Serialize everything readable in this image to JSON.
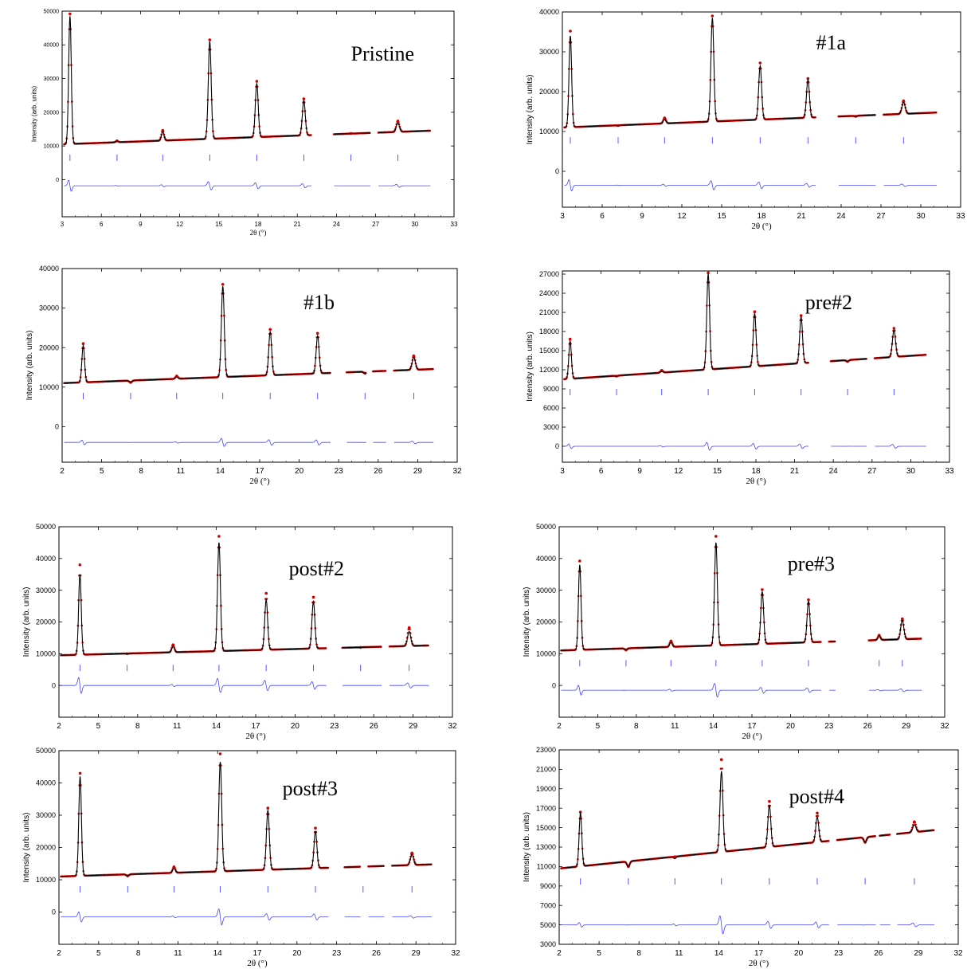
{
  "figure": {
    "layout": "4x2 grid of XRD Rietveld refinement plots"
  },
  "chart_data": [
    {
      "type": "line",
      "title": "Pristine",
      "xlabel": "2θ (°)",
      "ylabel": "Intensity (arb. units)",
      "xlim": [
        3,
        33
      ],
      "ylim": [
        -11000,
        50000
      ],
      "xticks": [
        3,
        6,
        9,
        12,
        15,
        18,
        21,
        24,
        27,
        30,
        33
      ],
      "yticks": [
        0,
        10000,
        20000,
        30000,
        40000,
        50000
      ],
      "baseline": {
        "start": 10500,
        "end": 14800
      },
      "diff_offset": -1800,
      "excluded_regions": [
        [
          22.1,
          23.8
        ],
        [
          26.6,
          27.2
        ]
      ],
      "peaks": [
        {
          "x": 3.6,
          "y": 48500,
          "obs": 49200,
          "w": 0.1
        },
        {
          "x": 7.2,
          "y": 11400,
          "obs": 11500,
          "w": 0.1
        },
        {
          "x": 10.7,
          "y": 14200,
          "obs": 14600,
          "w": 0.1
        },
        {
          "x": 14.3,
          "y": 41000,
          "obs": 41500,
          "w": 0.11
        },
        {
          "x": 17.9,
          "y": 28500,
          "obs": 29200,
          "w": 0.11
        },
        {
          "x": 21.5,
          "y": 23500,
          "obs": 24000,
          "w": 0.11
        },
        {
          "x": 25.1,
          "y": 13700,
          "obs": 13700,
          "w": 0.1
        },
        {
          "x": 28.7,
          "y": 16800,
          "obs": 17400,
          "w": 0.12
        }
      ]
    },
    {
      "type": "line",
      "title": "#1a",
      "xlabel": "2θ (°)",
      "ylabel": "Intensity (arb. units)",
      "xlim": [
        3,
        33
      ],
      "ylim": [
        -9000,
        40000
      ],
      "xticks": [
        3,
        6,
        9,
        12,
        15,
        18,
        21,
        24,
        27,
        30,
        33
      ],
      "yticks": [
        0,
        10000,
        20000,
        30000,
        40000
      ],
      "baseline": {
        "start": 11000,
        "end": 15000
      },
      "diff_offset": -3500,
      "excluded_regions": [
        [
          22.1,
          23.8
        ],
        [
          26.6,
          27.2
        ]
      ],
      "peaks": [
        {
          "x": 3.6,
          "y": 34000,
          "obs": 35200,
          "w": 0.1
        },
        {
          "x": 7.2,
          "y": 11400,
          "obs": 11500,
          "w": 0.1
        },
        {
          "x": 10.7,
          "y": 13000,
          "obs": 13400,
          "w": 0.1
        },
        {
          "x": 14.3,
          "y": 38500,
          "obs": 39000,
          "w": 0.11
        },
        {
          "x": 17.9,
          "y": 26500,
          "obs": 27200,
          "w": 0.11
        },
        {
          "x": 21.5,
          "y": 23000,
          "obs": 23300,
          "w": 0.11
        },
        {
          "x": 25.1,
          "y": 13800,
          "obs": 13800,
          "w": 0.1
        },
        {
          "x": 28.7,
          "y": 17300,
          "obs": 17700,
          "w": 0.12
        }
      ]
    },
    {
      "type": "line",
      "title": "#1b",
      "xlabel": "2θ (°)",
      "ylabel": "Intensity (arb. units)",
      "xlim": [
        2,
        32
      ],
      "ylim": [
        -9000,
        40000
      ],
      "xticks": [
        2,
        5,
        8,
        11,
        14,
        17,
        20,
        23,
        26,
        29,
        32
      ],
      "yticks": [
        0,
        10000,
        20000,
        30000,
        40000
      ],
      "baseline": {
        "start": 11000,
        "end": 14800
      },
      "diff_offset": -4000,
      "excluded_regions": [
        [
          22.4,
          23.6
        ],
        [
          25.1,
          25.6
        ],
        [
          26.6,
          27.2
        ]
      ],
      "peaks": [
        {
          "x": 3.6,
          "y": 20500,
          "obs": 21000,
          "w": 0.1
        },
        {
          "x": 7.2,
          "y": 11200,
          "obs": 11200,
          "w": 0.1
        },
        {
          "x": 10.7,
          "y": 12500,
          "obs": 12800,
          "w": 0.1
        },
        {
          "x": 14.2,
          "y": 35500,
          "obs": 36000,
          "w": 0.11
        },
        {
          "x": 17.8,
          "y": 24000,
          "obs": 24600,
          "w": 0.11
        },
        {
          "x": 21.4,
          "y": 23000,
          "obs": 23600,
          "w": 0.11
        },
        {
          "x": 25.0,
          "y": 13500,
          "obs": 13500,
          "w": 0.1
        },
        {
          "x": 28.7,
          "y": 17500,
          "obs": 17900,
          "w": 0.12
        }
      ]
    },
    {
      "type": "line",
      "title": "pre#2",
      "xlabel": "2θ (°)",
      "ylabel": "Intensity (arb. units)",
      "xlim": [
        3,
        33
      ],
      "ylim": [
        -2500,
        27500
      ],
      "xticks": [
        3,
        6,
        9,
        12,
        15,
        18,
        21,
        24,
        27,
        30,
        33
      ],
      "yticks": [
        0,
        3000,
        6000,
        9000,
        12000,
        15000,
        18000,
        21000,
        24000,
        27000
      ],
      "baseline": {
        "start": 10500,
        "end": 14600
      },
      "diff_offset": 0,
      "excluded_regions": [
        [
          22.1,
          23.8
        ],
        [
          26.6,
          27.2
        ]
      ],
      "peaks": [
        {
          "x": 3.6,
          "y": 16500,
          "obs": 16800,
          "w": 0.1
        },
        {
          "x": 7.2,
          "y": 11000,
          "obs": 11000,
          "w": 0.1
        },
        {
          "x": 10.7,
          "y": 11700,
          "obs": 11900,
          "w": 0.1
        },
        {
          "x": 14.3,
          "y": 27000,
          "obs": 27200,
          "w": 0.11
        },
        {
          "x": 17.9,
          "y": 20800,
          "obs": 21100,
          "w": 0.11
        },
        {
          "x": 21.5,
          "y": 20300,
          "obs": 20500,
          "w": 0.11
        },
        {
          "x": 25.1,
          "y": 13300,
          "obs": 13300,
          "w": 0.1
        },
        {
          "x": 28.7,
          "y": 18200,
          "obs": 18500,
          "w": 0.12
        }
      ]
    },
    {
      "type": "line",
      "title": "post#2",
      "xlabel": "2θ (°)",
      "ylabel": "Intensity (arb. units)",
      "xlim": [
        2,
        32
      ],
      "ylim": [
        -10000,
        50000
      ],
      "xticks": [
        2,
        5,
        8,
        11,
        14,
        17,
        20,
        23,
        26,
        29,
        32
      ],
      "yticks": [
        0,
        10000,
        20000,
        30000,
        40000,
        50000
      ],
      "baseline": {
        "start": 9500,
        "end": 12800
      },
      "diff_offset": 0,
      "excluded_regions": [
        [
          22.4,
          23.6
        ],
        [
          26.6,
          27.2
        ]
      ],
      "peaks": [
        {
          "x": 3.6,
          "y": 35000,
          "obs": 38000,
          "w": 0.1
        },
        {
          "x": 7.2,
          "y": 10000,
          "obs": 10000,
          "w": 0.1
        },
        {
          "x": 10.7,
          "y": 12300,
          "obs": 12800,
          "w": 0.1
        },
        {
          "x": 14.2,
          "y": 45000,
          "obs": 47000,
          "w": 0.11
        },
        {
          "x": 17.8,
          "y": 27000,
          "obs": 29000,
          "w": 0.11
        },
        {
          "x": 21.4,
          "y": 26500,
          "obs": 27800,
          "w": 0.11
        },
        {
          "x": 25.0,
          "y": 12000,
          "obs": 12000,
          "w": 0.1
        },
        {
          "x": 28.7,
          "y": 17000,
          "obs": 18200,
          "w": 0.12
        }
      ]
    },
    {
      "type": "line",
      "title": "pre#3",
      "xlabel": "2θ (°)",
      "ylabel": "Intensity (arb. units)",
      "xlim": [
        2,
        32
      ],
      "ylim": [
        -10000,
        50000
      ],
      "xticks": [
        2,
        5,
        8,
        11,
        14,
        17,
        20,
        23,
        26,
        29,
        32
      ],
      "yticks": [
        0,
        10000,
        20000,
        30000,
        40000,
        50000
      ],
      "baseline": {
        "start": 11000,
        "end": 15000
      },
      "diff_offset": -1500,
      "excluded_regions": [
        [
          22.4,
          23.0
        ],
        [
          23.5,
          26.1
        ]
      ],
      "peaks": [
        {
          "x": 3.6,
          "y": 38000,
          "obs": 39200,
          "w": 0.1
        },
        {
          "x": 7.2,
          "y": 11200,
          "obs": 11200,
          "w": 0.1
        },
        {
          "x": 10.7,
          "y": 13500,
          "obs": 14000,
          "w": 0.1
        },
        {
          "x": 14.2,
          "y": 45000,
          "obs": 47000,
          "w": 0.11
        },
        {
          "x": 17.8,
          "y": 29500,
          "obs": 30200,
          "w": 0.11
        },
        {
          "x": 21.4,
          "y": 26500,
          "obs": 27000,
          "w": 0.11
        },
        {
          "x": 26.9,
          "y": 15500,
          "obs": 15800,
          "w": 0.1
        },
        {
          "x": 28.7,
          "y": 20500,
          "obs": 21000,
          "w": 0.12
        }
      ]
    },
    {
      "type": "line",
      "title": "post#3",
      "xlabel": "2θ (°)",
      "ylabel": "Intensity (arb. units)",
      "xlim": [
        2,
        32
      ],
      "ylim": [
        -10000,
        50000
      ],
      "xticks": [
        2,
        5,
        8,
        11,
        14,
        17,
        20,
        23,
        26,
        29,
        32
      ],
      "yticks": [
        0,
        10000,
        20000,
        30000,
        40000,
        50000
      ],
      "baseline": {
        "start": 11000,
        "end": 15000
      },
      "diff_offset": -1500,
      "excluded_regions": [
        [
          22.4,
          23.6
        ],
        [
          24.8,
          25.4
        ],
        [
          26.6,
          27.2
        ]
      ],
      "peaks": [
        {
          "x": 3.6,
          "y": 42000,
          "obs": 43000,
          "w": 0.1
        },
        {
          "x": 7.2,
          "y": 11200,
          "obs": 11200,
          "w": 0.1
        },
        {
          "x": 10.7,
          "y": 13600,
          "obs": 14000,
          "w": 0.1
        },
        {
          "x": 14.2,
          "y": 46500,
          "obs": 49000,
          "w": 0.11
        },
        {
          "x": 17.8,
          "y": 31500,
          "obs": 32200,
          "w": 0.11
        },
        {
          "x": 21.4,
          "y": 25000,
          "obs": 26000,
          "w": 0.11
        },
        {
          "x": 25.0,
          "y": 14200,
          "obs": 14200,
          "w": 0.1
        },
        {
          "x": 28.7,
          "y": 17800,
          "obs": 18300,
          "w": 0.12
        }
      ]
    },
    {
      "type": "line",
      "title": "post#4",
      "xlabel": "2θ (°)",
      "ylabel": "Intensity (arb. units)",
      "xlim": [
        2,
        32
      ],
      "ylim": [
        3000,
        23000
      ],
      "xticks": [
        2,
        5,
        8,
        11,
        14,
        17,
        20,
        23,
        26,
        29,
        32
      ],
      "yticks": [
        3000,
        5000,
        7000,
        9000,
        11000,
        13000,
        15000,
        17000,
        19000,
        21000,
        23000
      ],
      "baseline": {
        "start": 10800,
        "end": 15000
      },
      "diff_offset": 5000,
      "excluded_regions": [
        [
          22.3,
          22.9
        ],
        [
          25.8,
          26.1
        ],
        [
          26.9,
          27.4
        ]
      ],
      "peaks": [
        {
          "x": 3.6,
          "y": 16500,
          "obs": 16600,
          "w": 0.1
        },
        {
          "x": 7.2,
          "y": 11000,
          "obs": 11000,
          "w": 0.1
        },
        {
          "x": 10.7,
          "y": 11800,
          "obs": 12000,
          "w": 0.1
        },
        {
          "x": 14.2,
          "y": 20800,
          "obs": 22000,
          "w": 0.11
        },
        {
          "x": 17.8,
          "y": 17300,
          "obs": 17700,
          "w": 0.11
        },
        {
          "x": 21.4,
          "y": 16100,
          "obs": 16500,
          "w": 0.11
        },
        {
          "x": 25.0,
          "y": 13500,
          "obs": 13500,
          "w": 0.1
        },
        {
          "x": 28.7,
          "y": 15300,
          "obs": 15600,
          "w": 0.12
        }
      ]
    }
  ],
  "colors": {
    "observed": "#cc0000",
    "calculated": "#000000",
    "difference": "#4444ff",
    "reflections": "#4444ff"
  }
}
